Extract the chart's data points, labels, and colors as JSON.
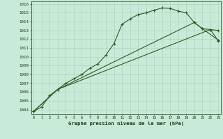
{
  "x": [
    0,
    1,
    2,
    3,
    4,
    5,
    6,
    7,
    8,
    9,
    10,
    11,
    12,
    13,
    14,
    15,
    16,
    17,
    18,
    19,
    20,
    21,
    22,
    23
  ],
  "line1_x": [
    0,
    1,
    2,
    3,
    4,
    5,
    6,
    7,
    8,
    9,
    10,
    11,
    12,
    13,
    14,
    15,
    16,
    17,
    18,
    19,
    20,
    21,
    22,
    23
  ],
  "line1_y": [
    1003.8,
    1004.3,
    1005.6,
    1006.3,
    1007.0,
    1007.5,
    1008.0,
    1008.7,
    1009.2,
    1010.2,
    1011.5,
    1013.7,
    1014.3,
    1014.8,
    1015.0,
    1015.3,
    1015.55,
    1015.5,
    1015.2,
    1015.0,
    1013.9,
    1013.2,
    1013.1,
    1013.0
  ],
  "line2_x": [
    0,
    3,
    20,
    21,
    23
  ],
  "line2_y": [
    1003.8,
    1006.3,
    1013.9,
    1013.2,
    1011.9
  ],
  "line3_x": [
    0,
    3,
    22,
    23
  ],
  "line3_y": [
    1003.8,
    1006.3,
    1013.1,
    1011.8
  ],
  "line_color": "#2d5a27",
  "bg_color": "#c8ead8",
  "grid_color": "#aacfb8",
  "ylabel_values": [
    1004,
    1005,
    1006,
    1007,
    1008,
    1009,
    1010,
    1011,
    1012,
    1013,
    1014,
    1015,
    1016
  ],
  "xlabel": "Graphe pression niveau de la mer (hPa)",
  "ylim": [
    1003.5,
    1016.3
  ],
  "xlim": [
    -0.3,
    23.3
  ],
  "font_color": "#1a3a14"
}
